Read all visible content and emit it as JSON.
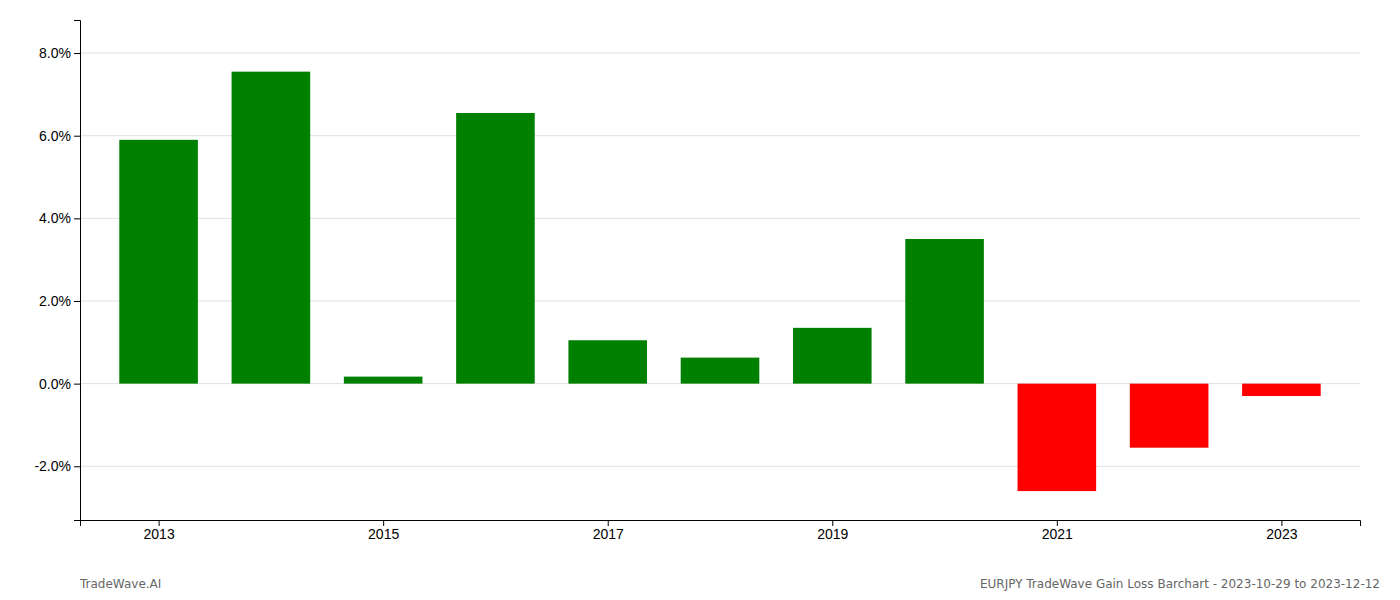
{
  "chart_data": {
    "type": "bar",
    "x": [
      2013,
      2014,
      2015,
      2016,
      2017,
      2018,
      2019,
      2020,
      2021,
      2022,
      2023
    ],
    "values": [
      0.059,
      0.0755,
      0.0017,
      0.0655,
      0.0105,
      0.0063,
      0.0135,
      0.035,
      -0.026,
      -0.0155,
      -0.003
    ],
    "colors": [
      "#008000",
      "#008000",
      "#008000",
      "#008000",
      "#008000",
      "#008000",
      "#008000",
      "#008000",
      "#ff0000",
      "#ff0000",
      "#ff0000"
    ],
    "xlim": [
      2012.3,
      2023.7
    ],
    "xticks": [
      2013,
      2015,
      2017,
      2019,
      2021,
      2023
    ],
    "ylim": [
      -0.033,
      0.088
    ],
    "yticks": [
      {
        "value": -0.02,
        "label": "-2.0%"
      },
      {
        "value": 0.0,
        "label": "0.0%"
      },
      {
        "value": 0.02,
        "label": "2.0%"
      },
      {
        "value": 0.04,
        "label": "4.0%"
      },
      {
        "value": 0.06,
        "label": "6.0%"
      },
      {
        "value": 0.08,
        "label": "8.0%"
      }
    ],
    "grid": true,
    "annotations": [
      "TradeWave.AI",
      "EURJPY TradeWave Gain Loss Barchart - 2023-10-29 to 2023-12-12"
    ]
  }
}
